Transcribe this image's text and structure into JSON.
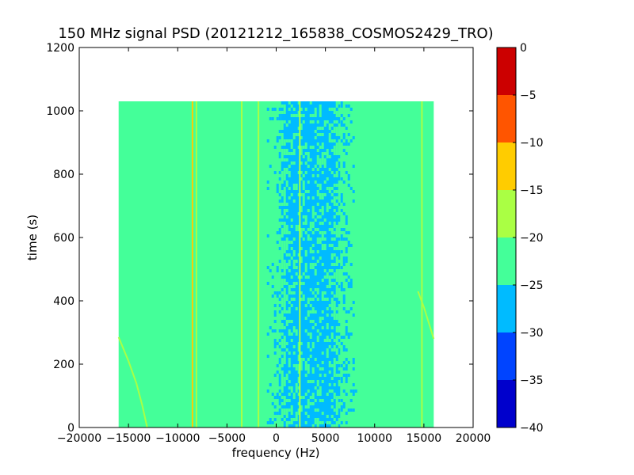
{
  "chart_data": {
    "type": "heatmap",
    "title": "150 MHz signal PSD (20121212_165838_COSMOS2429_TRO)",
    "xlabel": "frequency (Hz)",
    "ylabel": "time (s)",
    "xlim": [
      -20000,
      20000
    ],
    "ylim": [
      0,
      1200
    ],
    "xticks": [
      -20000,
      -15000,
      -10000,
      -5000,
      0,
      5000,
      10000,
      15000,
      20000
    ],
    "xtick_labels": [
      "−20000",
      "−15000",
      "−10000",
      "−5000",
      "0",
      "5000",
      "10000",
      "15000",
      "20000"
    ],
    "yticks": [
      0,
      200,
      400,
      600,
      800,
      1000,
      1200
    ],
    "ytick_labels": [
      "0",
      "200",
      "400",
      "600",
      "800",
      "1000",
      "1200"
    ],
    "data_extent": {
      "x": [
        -16000,
        16000
      ],
      "y": [
        0,
        1030
      ]
    },
    "background_level": "-25 to -20",
    "noise_region": {
      "x": [
        500,
        6500
      ],
      "level": "-30 to -25"
    },
    "vertical_lines": [
      {
        "x": -8500,
        "y": [
          0,
          1030
        ],
        "level": "-15 to -10"
      },
      {
        "x": -8100,
        "y": [
          0,
          1030
        ],
        "level": "-20 to -15"
      },
      {
        "x": -3500,
        "y": [
          0,
          1030
        ],
        "level": "-20 to -15"
      },
      {
        "x": -1800,
        "y": [
          0,
          1030
        ],
        "level": "-20 to -15"
      },
      {
        "x": 2400,
        "y": [
          0,
          1030
        ],
        "level": "-20 to -15"
      },
      {
        "x": 14800,
        "y": [
          0,
          1030
        ],
        "level": "-20 to -15"
      }
    ],
    "drift_curves": [
      {
        "points": [
          [
            -16000,
            285
          ],
          [
            -15000,
            210
          ],
          [
            -14200,
            140
          ],
          [
            -13600,
            70
          ],
          [
            -13100,
            0
          ]
        ],
        "level": "-20 to -15"
      },
      {
        "points": [
          [
            14400,
            430
          ],
          [
            15000,
            380
          ],
          [
            15500,
            330
          ],
          [
            16000,
            280
          ]
        ],
        "level": "-20 to -15"
      }
    ],
    "colorbar": {
      "ticks": [
        0,
        -5,
        -10,
        -15,
        -20,
        -25,
        -30,
        -35,
        -40
      ],
      "tick_labels": [
        "0",
        "−5",
        "−10",
        "−15",
        "−20",
        "−25",
        "−30",
        "−35",
        "−40"
      ],
      "bands": [
        {
          "range": [
            -5,
            0
          ],
          "color": "#cc0000"
        },
        {
          "range": [
            -10,
            -5
          ],
          "color": "#ff5500"
        },
        {
          "range": [
            -15,
            -10
          ],
          "color": "#ffcc00"
        },
        {
          "range": [
            -20,
            -15
          ],
          "color": "#aaff44"
        },
        {
          "range": [
            -25,
            -20
          ],
          "color": "#44ff99"
        },
        {
          "range": [
            -30,
            -25
          ],
          "color": "#00bbff"
        },
        {
          "range": [
            -35,
            -30
          ],
          "color": "#0044ff"
        },
        {
          "range": [
            -40,
            -35
          ],
          "color": "#0000cc"
        }
      ]
    }
  }
}
